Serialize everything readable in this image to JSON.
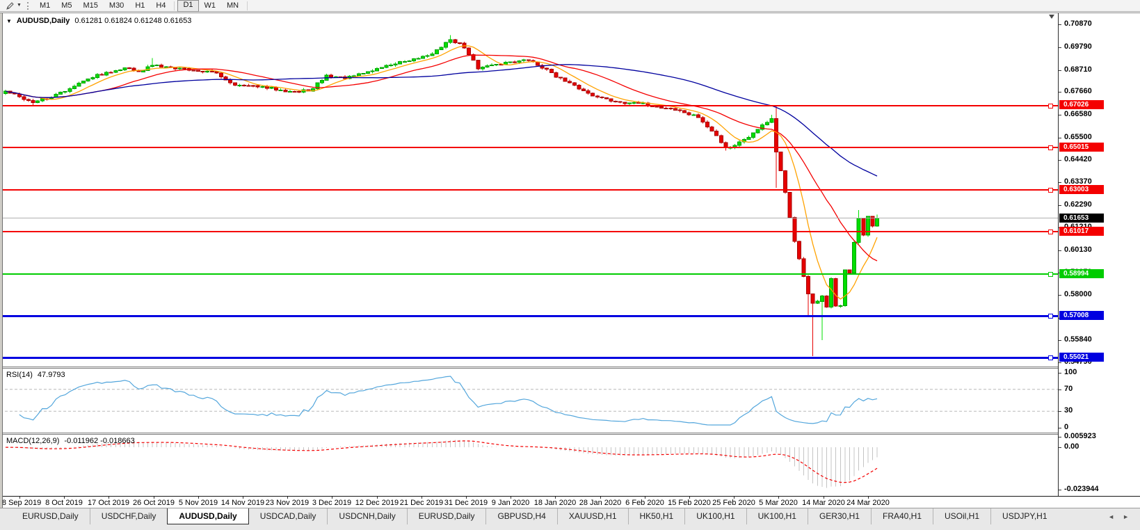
{
  "toolbar": {
    "timeframes": [
      "M1",
      "M5",
      "M15",
      "M30",
      "H1",
      "H4",
      "D1",
      "W1",
      "MN"
    ],
    "active": "D1"
  },
  "chart": {
    "symbol": "AUDUSD,Daily",
    "open": "0.61281",
    "high": "0.61824",
    "low": "0.61248",
    "close": "0.61653",
    "price_lines": [
      {
        "label": "0.67026",
        "value": 0.67026,
        "color": "#f40000",
        "thickness": 2
      },
      {
        "label": "0.65015",
        "value": 0.65015,
        "color": "#f40000",
        "thickness": 2
      },
      {
        "label": "0.63003",
        "value": 0.63003,
        "color": "#f40000",
        "thickness": 2
      },
      {
        "label": "0.61653",
        "value": 0.61653,
        "color": "#b0b0b0",
        "thickness": 1,
        "current": true
      },
      {
        "label": "0.61017",
        "value": 0.61017,
        "color": "#f40000",
        "thickness": 2
      },
      {
        "label": "0.58994",
        "value": 0.58994,
        "color": "#00cc00",
        "thickness": 2
      },
      {
        "label": "0.57008",
        "value": 0.57008,
        "color": "#0000e0",
        "thickness": 3
      },
      {
        "label": "0.55021",
        "value": 0.55021,
        "color": "#0000e0",
        "thickness": 3
      }
    ]
  },
  "rsi_panel": {
    "name": "RSI(14)",
    "value": "47.9793"
  },
  "macd_panel": {
    "name": "MACD(12,26,9)",
    "macd_value": "-0.011962",
    "signal_value": "-0.018663"
  },
  "tabs": {
    "items": [
      "EURUSD,Daily",
      "USDCHF,Daily",
      "AUDUSD,Daily",
      "USDCAD,Daily",
      "USDCNH,Daily",
      "EURUSD,Daily",
      "GBPUSD,H4",
      "XAUUSD,H1",
      "HK50,H1",
      "UK100,H1",
      "UK100,H1",
      "GER30,H1",
      "FRA40,H1",
      "USOil,H1",
      "USDJPY,H1"
    ],
    "active_index": 2,
    "left_arrow": "◄",
    "right_arrow": "►"
  },
  "colors": {
    "up": "#00df00",
    "up_border": "#00a000",
    "down": "#e60000",
    "down_border": "#a80000",
    "rsi": "#53a6dc",
    "macd_hist": "#c4c4c4",
    "macd_signal": "#f40000",
    "level_dash": "#b8b8b8"
  },
  "chart_data": [
    {
      "type": "candlestick",
      "title": "AUDUSD Daily",
      "bars": 191,
      "ylim": [
        0.54596,
        0.7141
      ],
      "y_axis_ticks": [
        "0.70870",
        "0.69790",
        "0.68710",
        "0.67660",
        "0.66580",
        "0.65500",
        "0.64420",
        "0.63370",
        "0.62290",
        "0.61210",
        "0.60130",
        "0.59050",
        "0.58000",
        "0.56920",
        "0.55840",
        "0.54790"
      ],
      "x_axis_labels": [
        "28 Sep 2019",
        "8 Oct 2019",
        "17 Oct 2019",
        "26 Oct 2019",
        "5 Nov 2019",
        "14 Nov 2019",
        "23 Nov 2019",
        "3 Dec 2019",
        "12 Dec 2019",
        "21 Dec 2019",
        "31 Dec 2019",
        "9 Jan 2020",
        "18 Jan 2020",
        "28 Jan 2020",
        "6 Feb 2020",
        "15 Feb 2020",
        "25 Feb 2020",
        "5 Mar 2020",
        "14 Mar 2020",
        "24 Mar 2020"
      ],
      "close_anchors": [
        [
          0,
          0.677
        ],
        [
          3,
          0.6744
        ],
        [
          6,
          0.6716
        ],
        [
          10,
          0.674
        ],
        [
          14,
          0.6782
        ],
        [
          18,
          0.6828
        ],
        [
          22,
          0.686
        ],
        [
          26,
          0.6882
        ],
        [
          29,
          0.6862
        ],
        [
          32,
          0.6892
        ],
        [
          36,
          0.6884
        ],
        [
          41,
          0.687
        ],
        [
          46,
          0.6856
        ],
        [
          50,
          0.6798
        ],
        [
          55,
          0.679
        ],
        [
          60,
          0.6776
        ],
        [
          64,
          0.6766
        ],
        [
          67,
          0.6782
        ],
        [
          70,
          0.6846
        ],
        [
          74,
          0.683
        ],
        [
          78,
          0.6854
        ],
        [
          83,
          0.6892
        ],
        [
          88,
          0.6914
        ],
        [
          93,
          0.6948
        ],
        [
          97,
          0.7016
        ],
        [
          99,
          0.6998
        ],
        [
          101,
          0.6944
        ],
        [
          103,
          0.6876
        ],
        [
          106,
          0.6894
        ],
        [
          110,
          0.691
        ],
        [
          114,
          0.6916
        ],
        [
          118,
          0.6874
        ],
        [
          122,
          0.6816
        ],
        [
          125,
          0.678
        ],
        [
          129,
          0.6742
        ],
        [
          133,
          0.672
        ],
        [
          137,
          0.6716
        ],
        [
          141,
          0.6698
        ],
        [
          145,
          0.6688
        ],
        [
          148,
          0.6668
        ],
        [
          151,
          0.6645
        ],
        [
          153,
          0.66
        ],
        [
          155,
          0.6558
        ],
        [
          157,
          0.65
        ],
        [
          159,
          0.6512
        ],
        [
          161,
          0.654
        ],
        [
          163,
          0.6572
        ],
        [
          165,
          0.661
        ],
        [
          167,
          0.664
        ],
        [
          168,
          0.648
        ],
        [
          169,
          0.6392
        ],
        [
          170,
          0.6288
        ],
        [
          171,
          0.617
        ],
        [
          172,
          0.6055
        ],
        [
          173,
          0.5972
        ],
        [
          174,
          0.5888
        ],
        [
          175,
          0.5805
        ],
        [
          176,
          0.576
        ],
        [
          177,
          0.577
        ],
        [
          178,
          0.5795
        ],
        [
          179,
          0.5742
        ],
        [
          180,
          0.5878
        ],
        [
          181,
          0.5748
        ],
        [
          182,
          0.575
        ],
        [
          183,
          0.592
        ],
        [
          184,
          0.5905
        ],
        [
          185,
          0.605
        ],
        [
          186,
          0.6165
        ],
        [
          187,
          0.6085
        ],
        [
          188,
          0.6175
        ],
        [
          189,
          0.6128
        ],
        [
          190,
          0.61653
        ]
      ],
      "wick_overrides": {
        "6": {
          "low": 0.6699
        },
        "32": {
          "high": 0.6928
        },
        "97": {
          "high": 0.7036
        },
        "157": {
          "low": 0.6488
        },
        "167": {
          "high": 0.6658
        },
        "168": {
          "high": 0.67,
          "low": 0.631
        },
        "175": {
          "low": 0.5702
        },
        "176": {
          "low": 0.551
        },
        "178": {
          "low": 0.5585
        },
        "186": {
          "high": 0.6205
        },
        "190": {
          "high": 0.61824,
          "low": 0.61248
        }
      },
      "overlays": [
        {
          "name": "MA-fast",
          "period": 8,
          "color": "#ffa200"
        },
        {
          "name": "MA-mid",
          "period": 21,
          "color": "#f40000"
        },
        {
          "name": "MA-slow",
          "period": 55,
          "color": "#00009e"
        }
      ]
    },
    {
      "type": "line",
      "name": "RSI(14)",
      "period": 14,
      "current": 47.9793,
      "ylim": [
        0,
        100
      ],
      "levels": [
        70,
        30
      ],
      "y_ticks": [
        "100",
        "70",
        "30",
        "0"
      ],
      "color": "#53a6dc"
    },
    {
      "type": "bar",
      "name": "MACD(12,26,9)",
      "fast": 12,
      "slow": 26,
      "signal": 9,
      "current_macd": -0.011962,
      "current_signal": -0.018663,
      "ylim": [
        -0.023944,
        0.005923
      ],
      "y_ticks": [
        "0.005923",
        "0.00",
        "-0.023944"
      ],
      "histogram_color": "#c4c4c4",
      "signal_color": "#f40000"
    }
  ]
}
